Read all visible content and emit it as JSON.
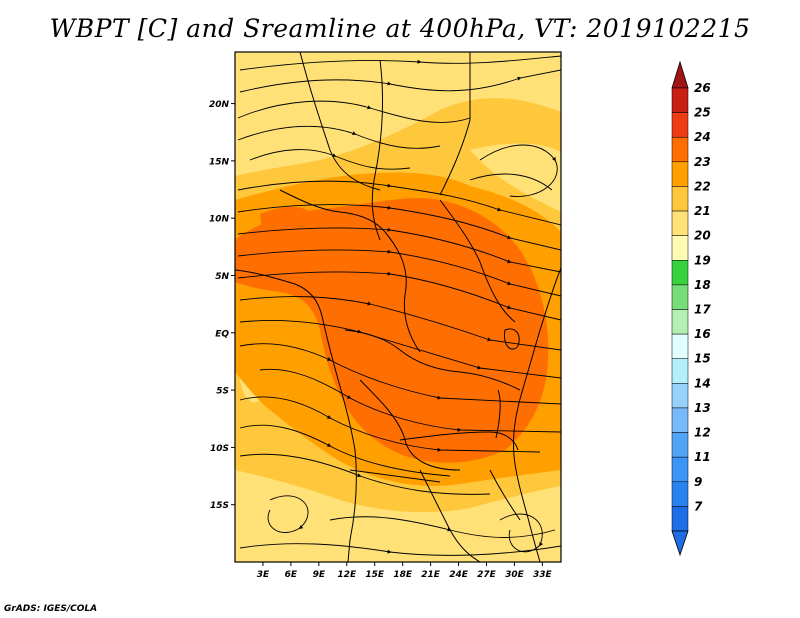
{
  "title": "WBPT [C] and Sreamline at 400hPa, VT: 2019102215",
  "credit": "GrADS: IGES/COLA",
  "map": {
    "lon_range": [
      0,
      35
    ],
    "lat_range": [
      -20,
      24.5
    ],
    "lat_ticks": [
      {
        "value": 20,
        "label": "20N"
      },
      {
        "value": 15,
        "label": "15N"
      },
      {
        "value": 10,
        "label": "10N"
      },
      {
        "value": 5,
        "label": "5N"
      },
      {
        "value": 0,
        "label": "EQ"
      },
      {
        "value": -5,
        "label": "5S"
      },
      {
        "value": -10,
        "label": "10S"
      },
      {
        "value": -15,
        "label": "15S"
      }
    ],
    "lon_ticks": [
      {
        "value": 3,
        "label": "3E"
      },
      {
        "value": 6,
        "label": "6E"
      },
      {
        "value": 9,
        "label": "9E"
      },
      {
        "value": 12,
        "label": "12E"
      },
      {
        "value": 15,
        "label": "15E"
      },
      {
        "value": 18,
        "label": "18E"
      },
      {
        "value": 21,
        "label": "21E"
      },
      {
        "value": 24,
        "label": "24E"
      },
      {
        "value": 27,
        "label": "27E"
      },
      {
        "value": 30,
        "label": "30E"
      },
      {
        "value": 33,
        "label": "33E"
      }
    ]
  },
  "colorbar": {
    "levels": [
      {
        "label": "7",
        "color": "#1e6ee6"
      },
      {
        "label": "9",
        "color": "#2882f0"
      },
      {
        "label": "11",
        "color": "#3c96f5"
      },
      {
        "label": "12",
        "color": "#50a5f5"
      },
      {
        "label": "13",
        "color": "#78b9fa"
      },
      {
        "label": "14",
        "color": "#96d2fa"
      },
      {
        "label": "15",
        "color": "#b4f0fa"
      },
      {
        "label": "16",
        "color": "#e1ffff"
      },
      {
        "label": "17",
        "color": "#b4f0b4"
      },
      {
        "label": "18",
        "color": "#78dc78"
      },
      {
        "label": "19",
        "color": "#37d23c"
      },
      {
        "label": "20",
        "color": "#fffab4"
      },
      {
        "label": "21",
        "color": "#ffe178"
      },
      {
        "label": "22",
        "color": "#ffc83c"
      },
      {
        "label": "23",
        "color": "#ffa000"
      },
      {
        "label": "24",
        "color": "#ff6e00"
      },
      {
        "label": "25",
        "color": "#f03c14"
      },
      {
        "label": "26",
        "color": "#c81e14"
      }
    ],
    "top_arrow_color": "#a01414",
    "bottom_arrow_color": "#1e6ee6"
  },
  "field_colors": {
    "wbpt_19_20": "#ffe178",
    "wbpt_20_21": "#ffc83c",
    "wbpt_21_22": "#ffa000",
    "wbpt_22_23": "#ff6e00"
  }
}
